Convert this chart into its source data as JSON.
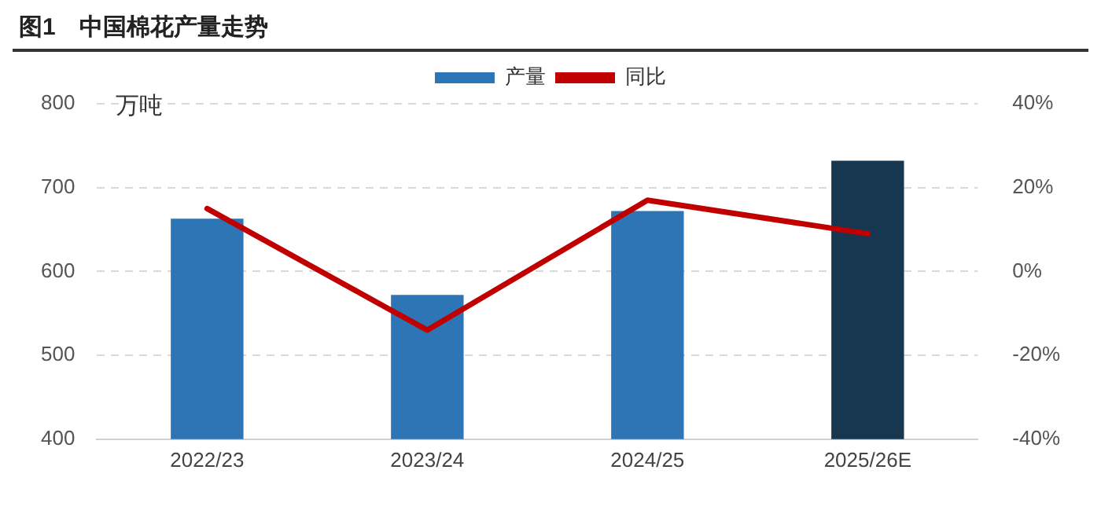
{
  "chart_data": {
    "type": "bar",
    "title": "图1　中国棉花产量走势",
    "ylabel": "万吨",
    "categories": [
      "2022/23",
      "2023/24",
      "2024/25",
      "2025/26E"
    ],
    "series": [
      {
        "name": "产量",
        "color": "#2e75b6",
        "colors": [
          "#2e75b6",
          "#2e75b6",
          "#2e75b6",
          "#17364f"
        ],
        "values": [
          663,
          572,
          672,
          732
        ]
      },
      {
        "name": "同比",
        "type": "line",
        "color": "#c00000",
        "axis": "y2",
        "values": [
          15,
          -14,
          17,
          9
        ]
      }
    ],
    "ylim": [
      400,
      800
    ],
    "yticks": [
      400,
      500,
      600,
      700,
      800
    ],
    "y2lim": [
      -40,
      40
    ],
    "y2ticks": [
      {
        "value": -40,
        "label": "-40%"
      },
      {
        "value": -20,
        "label": "-20%"
      },
      {
        "value": 0,
        "label": "0%"
      },
      {
        "value": 20,
        "label": "20%"
      },
      {
        "value": 40,
        "label": "40%"
      }
    ],
    "grid": "y",
    "legend": "top",
    "marker": "none"
  }
}
